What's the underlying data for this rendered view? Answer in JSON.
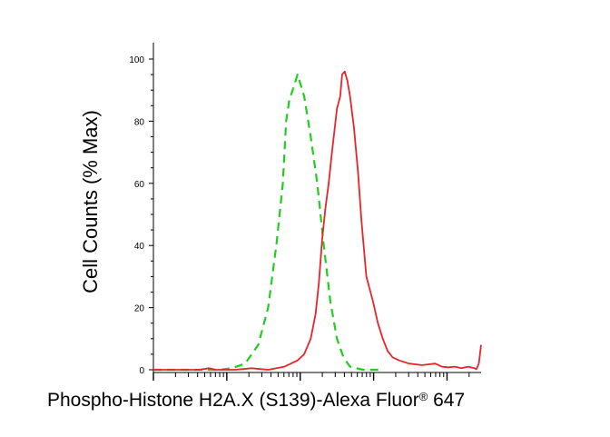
{
  "chart_data": {
    "type": "line",
    "title": "",
    "xlabel": "Phospho-Histone H2A.X (S139)-Alexa Fluor",
    "xlabel_superscript": "®",
    "xlabel_suffix": " 647",
    "ylabel": "Cell Counts (% Max)",
    "x_scale": "log",
    "xlim": [
      0,
      100
    ],
    "ylim": [
      0,
      100
    ],
    "y_ticks": [
      0,
      20,
      40,
      60,
      80,
      100
    ],
    "y_tick_labels": [
      "0",
      "20",
      "40",
      "60",
      "80",
      "100"
    ],
    "grid": false,
    "legend": "none",
    "series": [
      {
        "color": "#22cc22",
        "line_style": "dashed",
        "x": [
          0,
          20,
          24,
          28,
          32,
          35,
          37.5,
          39.5,
          40.5,
          41.5,
          42.5,
          44,
          46,
          48,
          50,
          52,
          54,
          56,
          58,
          60,
          64,
          70
        ],
        "values": [
          0,
          0,
          0.5,
          2,
          8,
          20,
          40,
          60,
          80,
          87,
          90,
          95,
          88,
          75,
          60,
          40,
          22,
          10,
          4,
          1,
          0,
          0
        ]
      },
      {
        "color": "#e8242a",
        "line_style": "solid",
        "x": [
          0,
          8,
          14,
          17,
          19,
          21,
          25,
          30,
          35,
          40,
          44,
          46,
          48,
          49.5,
          50.5,
          51.5,
          52.5,
          53.5,
          54.5,
          56,
          57,
          57.6,
          58.4,
          59.2,
          60,
          61.2,
          62.4,
          63.5,
          65,
          67,
          68.5,
          70,
          71.5,
          73,
          75,
          78,
          82,
          86,
          88,
          90,
          92,
          94,
          96,
          98,
          98.6,
          99.3,
          100
        ],
        "values": [
          0,
          0,
          0,
          0.5,
          0,
          0,
          0,
          0.5,
          0,
          1,
          3,
          5,
          10,
          18,
          28,
          42,
          52,
          60,
          70,
          84,
          88,
          95,
          96,
          93,
          88,
          78,
          64,
          48,
          30,
          22,
          15,
          10,
          6,
          4,
          3,
          2,
          1.5,
          2,
          1,
          0.8,
          1,
          0.5,
          1,
          0.5,
          0.2,
          2,
          8
        ]
      }
    ]
  }
}
